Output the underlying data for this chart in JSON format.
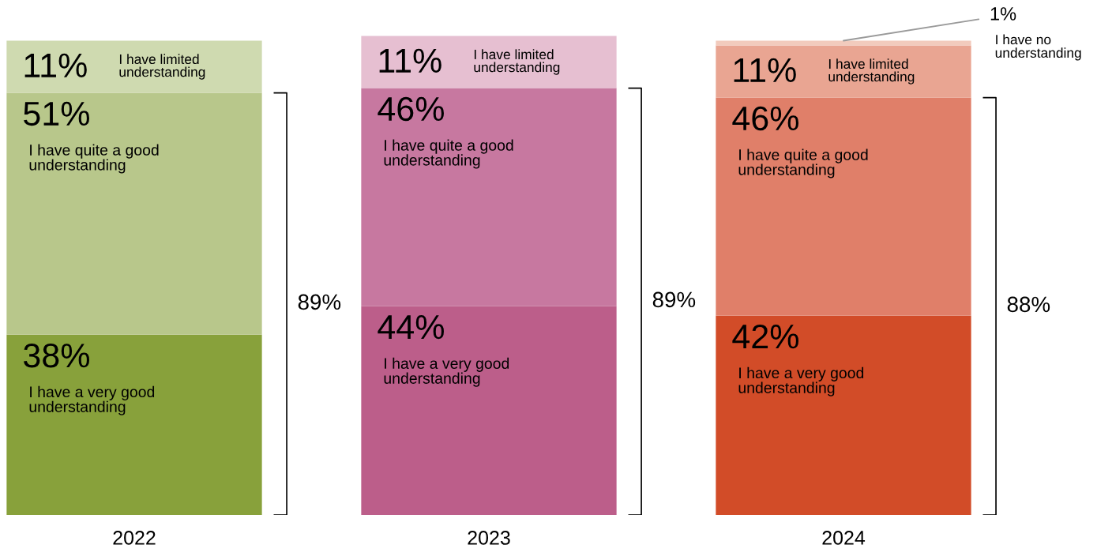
{
  "chart_data": {
    "type": "bar",
    "stacked": true,
    "categories": [
      "2022",
      "2023",
      "2024"
    ],
    "tick_labels": "x",
    "grid": false,
    "legend": false,
    "data_labels": true,
    "series": [
      {
        "name": "I have a very good understanding",
        "values": [
          38,
          44,
          42
        ],
        "colors": [
          "#88a13b",
          "#bc5e8a",
          "#d24c28"
        ],
        "value_labels": [
          "38%",
          "44%",
          "42%"
        ]
      },
      {
        "name": "I have quite a good understanding",
        "values": [
          51,
          46,
          46
        ],
        "colors": [
          "#b8c78b",
          "#c778a0",
          "#e07f69"
        ],
        "value_labels": [
          "51%",
          "46%",
          "46%"
        ]
      },
      {
        "name": "I have limited understanding",
        "values": [
          11,
          11,
          11
        ],
        "colors": [
          "#cfdab0",
          "#e6bfd1",
          "#e9a592"
        ],
        "value_labels": [
          "11%",
          "11%",
          "11%"
        ]
      },
      {
        "name": "I have no understanding",
        "values": [
          null,
          null,
          1
        ],
        "colors": [
          "#ffffff",
          "#ffffff",
          "#f2cbbd"
        ],
        "value_labels": [
          null,
          null,
          "1%"
        ]
      }
    ],
    "annotations": [
      "89%",
      "89%",
      "88%"
    ]
  }
}
